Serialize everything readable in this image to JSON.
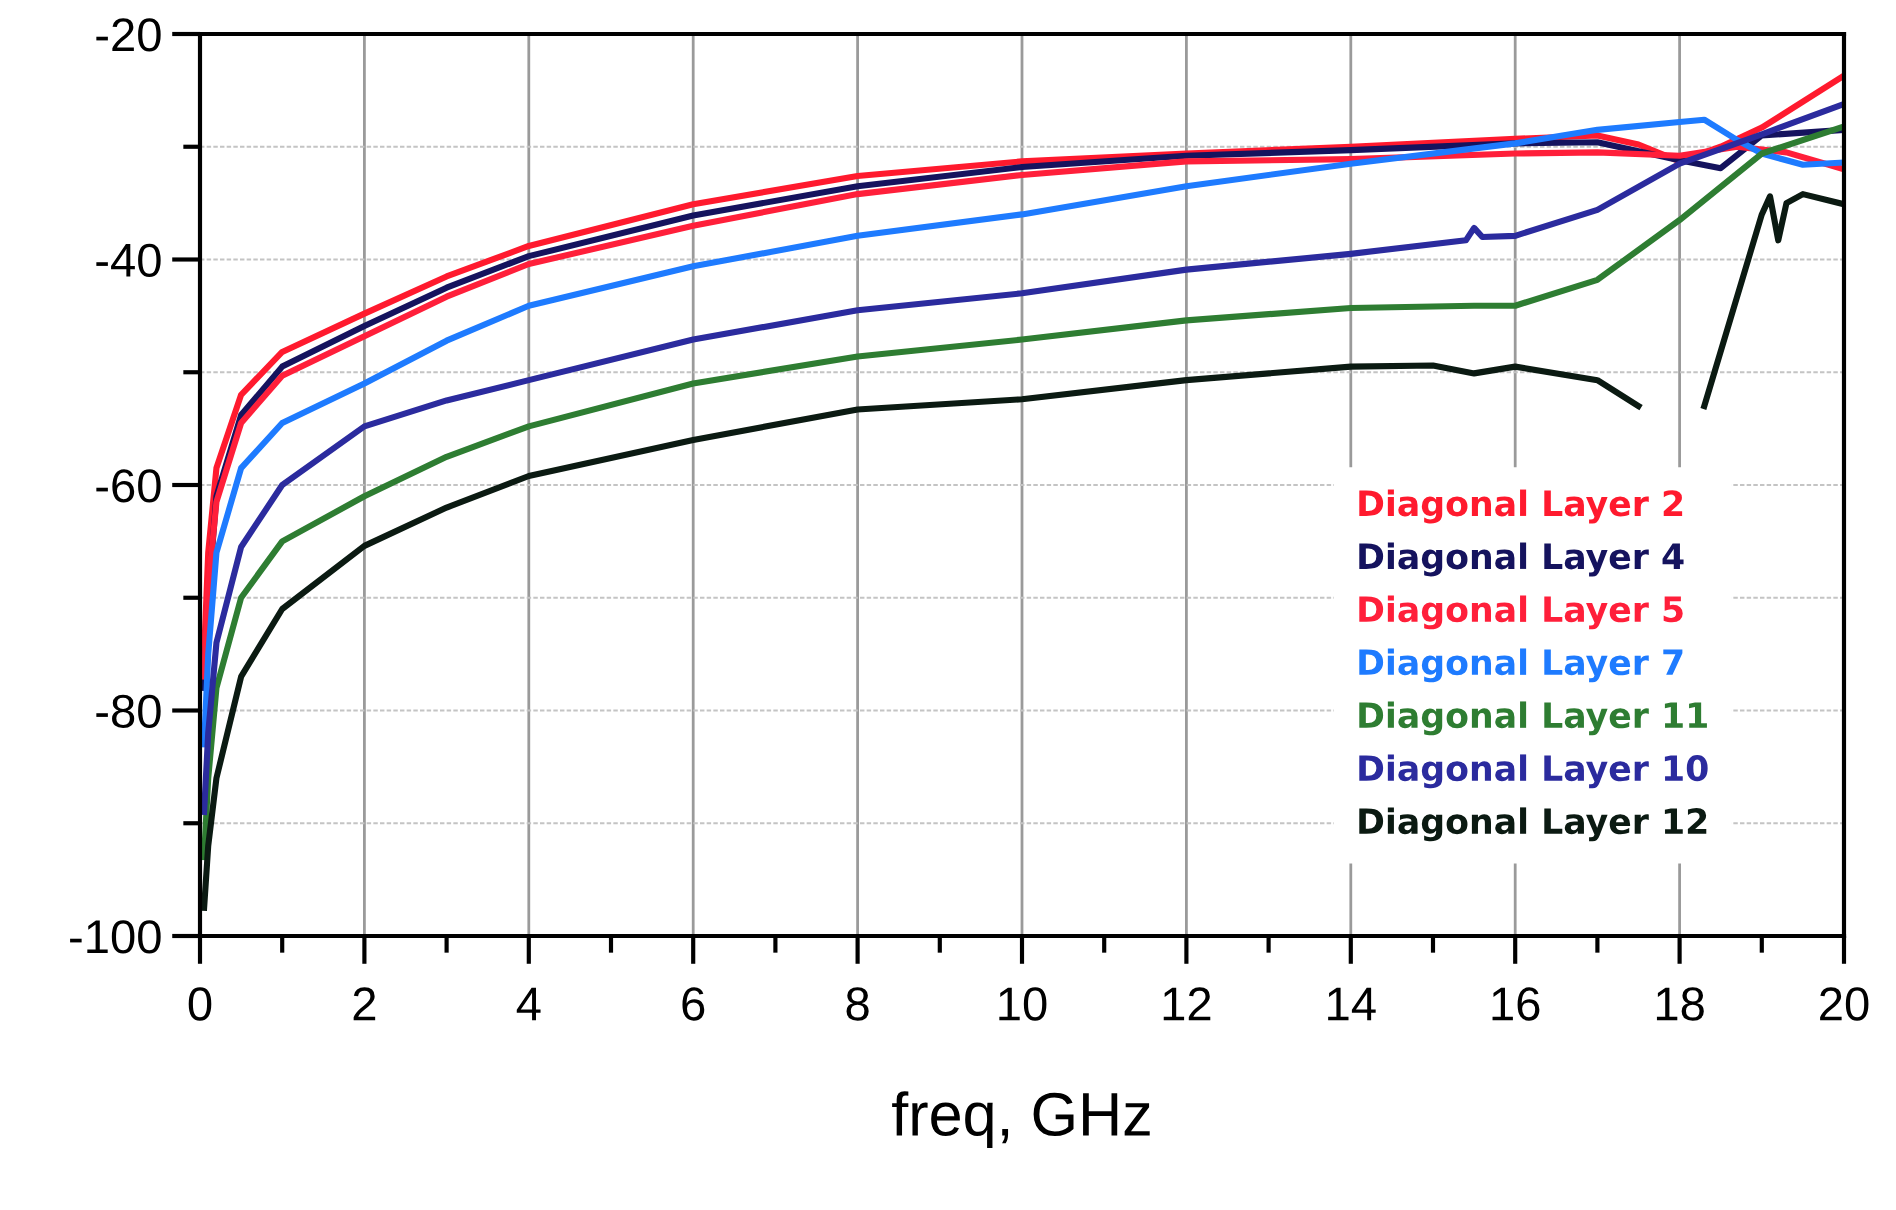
{
  "chart_data": {
    "type": "line",
    "xlabel": "freq, GHz",
    "xlim": [
      0,
      20
    ],
    "ylim": [
      -100,
      -20
    ],
    "xticks": [
      0,
      {
        "value": 1,
        "label": null
      },
      2,
      {
        "value": 3,
        "label": null
      },
      4,
      {
        "value": 5,
        "label": null
      },
      6,
      {
        "value": 7,
        "label": null
      },
      8,
      {
        "value": 9,
        "label": null
      },
      10,
      {
        "value": 11,
        "label": null
      },
      12,
      {
        "value": 13,
        "label": null
      },
      14,
      {
        "value": 15,
        "label": null
      },
      16,
      {
        "value": 17,
        "label": null
      },
      18,
      {
        "value": 19,
        "label": null
      },
      20
    ],
    "yticks": [
      -100,
      {
        "value": -90,
        "label": null
      },
      -80,
      {
        "value": -70,
        "label": null
      },
      -60,
      {
        "value": -50,
        "label": null
      },
      -40,
      {
        "value": -30,
        "label": null
      },
      -20
    ],
    "grid": true,
    "legend": "right",
    "line_style": "solid",
    "marker": "none",
    "series": [
      {
        "name": "Diagonal Layer 2",
        "color": "#ff1a2e",
        "x": [
          0.05,
          0.1,
          0.2,
          0.5,
          1,
          2,
          3,
          4,
          6,
          8,
          10,
          12,
          14,
          16,
          17,
          17.5,
          18,
          18.5,
          19,
          19.5,
          20
        ],
        "values": [
          -75,
          -66,
          -58.5,
          -52,
          -48.2,
          -44.8,
          -41.5,
          -38.8,
          -35.1,
          -32.6,
          -31.3,
          -30.6,
          -30,
          -29.3,
          -29,
          -29.8,
          -31.3,
          -30,
          -28.3,
          -26,
          -23.7
        ]
      },
      {
        "name": "Diagonal Layer 4",
        "color": "#15135e",
        "x": [
          0.05,
          0.1,
          0.2,
          0.5,
          1,
          2,
          3,
          4,
          6,
          8,
          10,
          12,
          14,
          16,
          17,
          18,
          18.5,
          19,
          20
        ],
        "values": [
          -78,
          -70,
          -61,
          -53.8,
          -49.5,
          -45.9,
          -42.5,
          -39.7,
          -36.1,
          -33.5,
          -31.8,
          -30.8,
          -30.3,
          -29.7,
          -29.6,
          -31.2,
          -31.9,
          -29,
          -28.5
        ]
      },
      {
        "name": "Diagonal Layer 5",
        "color": "#ff1f3a",
        "x": [
          0.05,
          0.1,
          0.2,
          0.5,
          1,
          2,
          3,
          4,
          6,
          8,
          10,
          12,
          14,
          16,
          17,
          18,
          18.7,
          19.3,
          20
        ],
        "values": [
          -77,
          -69,
          -61.5,
          -54.5,
          -50.3,
          -46.8,
          -43.3,
          -40.4,
          -37,
          -34.2,
          -32.5,
          -31.3,
          -31.1,
          -30.6,
          -30.5,
          -30.8,
          -30,
          -30.5,
          -32
        ]
      },
      {
        "name": "Diagonal Layer 7",
        "color": "#1e7bff",
        "x": [
          0.05,
          0.1,
          0.2,
          0.5,
          1,
          2,
          3,
          4,
          6,
          8,
          10,
          12,
          14,
          16,
          17,
          18,
          18.3,
          18.7,
          19,
          19.5,
          20
        ],
        "values": [
          -83,
          -75,
          -66,
          -58.5,
          -54.5,
          -51,
          -47.2,
          -44.1,
          -40.6,
          -37.9,
          -36,
          -33.5,
          -31.5,
          -29.7,
          -28.5,
          -27.8,
          -27.6,
          -29.4,
          -30.6,
          -31.6,
          -31.4
        ]
      },
      {
        "name": "Diagonal Layer 11",
        "color": "#2e7d32",
        "x": [
          0.05,
          0.1,
          0.2,
          0.5,
          1,
          2,
          3,
          4,
          6,
          8,
          10,
          12,
          14,
          15.5,
          16,
          17,
          18,
          19,
          20
        ],
        "values": [
          -93,
          -86,
          -78,
          -70,
          -65,
          -61,
          -57.5,
          -54.8,
          -51,
          -48.6,
          -47.1,
          -45.4,
          -44.3,
          -44.1,
          -44.1,
          -41.8,
          -36.5,
          -30.6,
          -28.2
        ]
      },
      {
        "name": "Diagonal Layer 10",
        "color": "#2b2b9e",
        "x": [
          0.05,
          0.1,
          0.2,
          0.5,
          1,
          2,
          3,
          4,
          6,
          8,
          10,
          12,
          14,
          15.4,
          15.5,
          15.6,
          16,
          17,
          18,
          19,
          20
        ],
        "values": [
          -89,
          -82,
          -74,
          -65.5,
          -60,
          -54.8,
          -52.5,
          -50.7,
          -47.1,
          -44.5,
          -43,
          -40.9,
          -39.5,
          -38.3,
          -37.2,
          -38,
          -37.9,
          -35.6,
          -31.5,
          -28.9,
          -26.2
        ]
      },
      {
        "name": "Diagonal Layer 12",
        "color": "#0b1a12",
        "x": [
          0.05,
          0.1,
          0.2,
          0.5,
          1,
          2,
          3,
          4,
          6,
          8,
          10,
          12,
          14,
          15,
          15.5,
          16,
          17,
          17.5,
          17.9,
          18.3,
          19,
          19.1,
          19.2,
          19.3,
          19.5,
          20
        ],
        "values": [
          -97.5,
          -92,
          -86,
          -77,
          -71,
          -65.4,
          -62,
          -59.2,
          -56,
          -53.3,
          -52.4,
          -50.7,
          -49.5,
          -49.4,
          -50.1,
          -49.5,
          -50.7,
          -53,
          null,
          -53,
          -36,
          -34.4,
          -38.3,
          -35,
          -34.2,
          -35.1
        ]
      }
    ]
  }
}
